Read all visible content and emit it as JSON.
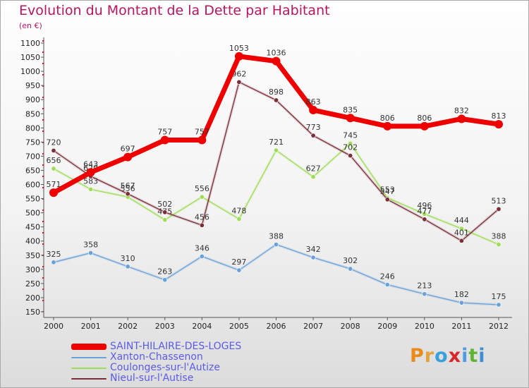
{
  "header": {
    "title": "Evolution du Montant de la Dette par Habitant",
    "subtitle": "(en €)"
  },
  "logo": {
    "text": "Proxiti",
    "colors": [
      "#e98a1b",
      "#e3a23a",
      "#3aa0dc",
      "#d9262b",
      "#4d9be0",
      "#5db535",
      "#3f8fd5"
    ]
  },
  "chart_data": {
    "type": "line",
    "x": [
      "2000",
      "2001",
      "2002",
      "2003",
      "2004",
      "2005",
      "2006",
      "2007",
      "2008",
      "2009",
      "2010",
      "2011",
      "2012"
    ],
    "ylim": [
      150,
      1100
    ],
    "yticks": [
      150,
      200,
      250,
      300,
      350,
      400,
      450,
      500,
      550,
      600,
      650,
      700,
      750,
      800,
      850,
      900,
      950,
      1000,
      1050,
      1100
    ],
    "legend_position": "bottom-left",
    "grid": false,
    "series": [
      {
        "name": "SAINT-HILAIRE-DES-LOGES",
        "color": "#ee0000",
        "width": 7,
        "values": [
          571,
          643,
          697,
          757,
          757,
          1053,
          1036,
          863,
          835,
          806,
          806,
          832,
          813
        ]
      },
      {
        "name": "Xanton-Chassenon",
        "color": "#6aa2d8",
        "width": 1.3,
        "values": [
          325,
          358,
          310,
          263,
          346,
          297,
          388,
          342,
          302,
          246,
          213,
          182,
          175
        ]
      },
      {
        "name": "Coulonges-sur-l'Autize",
        "color": "#9fdc57",
        "width": 1.3,
        "values": [
          656,
          583,
          556,
          475,
          556,
          478,
          721,
          627,
          745,
          553,
          496,
          444,
          388
        ]
      },
      {
        "name": "Nieul-sur-l'Autise",
        "color": "#7a2e38",
        "width": 1.3,
        "values": [
          720,
          629,
          567,
          502,
          456,
          962,
          898,
          773,
          702,
          547,
          477,
          401,
          513
        ]
      }
    ]
  }
}
